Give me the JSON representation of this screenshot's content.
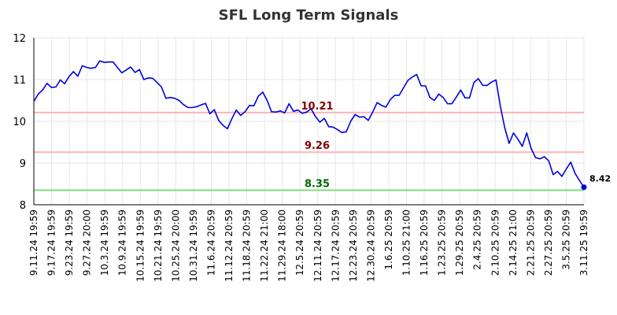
{
  "chart_data": {
    "type": "line",
    "title": "SFL Long Term Signals",
    "ylim": [
      8,
      12
    ],
    "yticks": [
      8,
      9,
      10,
      11,
      12
    ],
    "grid": true,
    "colors": {
      "line": "#0000dd",
      "resistance": "#ffb3b3",
      "support": "#7fdd7f",
      "resistance_label": "#800000",
      "support_label": "#006400",
      "grid": "#e6e6e6"
    },
    "x_tick_labels": [
      "9.11.24 19:59",
      "9.17.24 19:59",
      "9.23.24 19:59",
      "9.27.24 20:00",
      "10.3.24 19:59",
      "10.9.24 19:59",
      "10.15.24 19:59",
      "10.21.24 19:59",
      "10.25.24 20:00",
      "10.31.24 19:59",
      "11.6.24 20:59",
      "11.12.24 20:59",
      "11.18.24 20:59",
      "11.22.24 21:00",
      "11.29.24 18:00",
      "12.5.24 20:59",
      "12.11.24 20:59",
      "12.17.24 20:59",
      "12.23.24 20:59",
      "12.30.24 20:59",
      "1.6.25 20:59",
      "1.10.25 21:00",
      "1.16.25 20:59",
      "1.23.25 20:59",
      "1.29.25 20:59",
      "2.4.25 20:59",
      "2.10.25 20:59",
      "2.14.25 21:00",
      "2.21.25 20:59",
      "2.27.25 20:59",
      "3.5.25 20:59",
      "3.11.25 19:59"
    ],
    "horizontal_lines": [
      {
        "value": 10.21,
        "label": "10.21",
        "kind": "resistance"
      },
      {
        "value": 9.26,
        "label": "9.26",
        "kind": "resistance"
      },
      {
        "value": 8.35,
        "label": "8.35",
        "kind": "support"
      }
    ],
    "last_value_label": "8.42",
    "series": [
      {
        "values": [
          10.48,
          10.65,
          10.75,
          10.91,
          10.81,
          10.82,
          10.99,
          10.9,
          11.07,
          11.19,
          11.08,
          11.33,
          11.29,
          11.27,
          11.29,
          11.45,
          11.41,
          11.42,
          11.42,
          11.29,
          11.16,
          11.23,
          11.3,
          11.17,
          11.24,
          11.0,
          11.04,
          11.03,
          10.93,
          10.82,
          10.55,
          10.57,
          10.55,
          10.5,
          10.4,
          10.33,
          10.33,
          10.35,
          10.39,
          10.43,
          10.18,
          10.28,
          10.02,
          9.9,
          9.82,
          10.06,
          10.27,
          10.14,
          10.23,
          10.38,
          10.37,
          10.6,
          10.7,
          10.5,
          10.23,
          10.22,
          10.25,
          10.2,
          10.42,
          10.24,
          10.27,
          10.19,
          10.22,
          10.3,
          10.11,
          9.98,
          10.07,
          9.87,
          9.86,
          9.8,
          9.73,
          9.75,
          10.0,
          10.16,
          10.1,
          10.11,
          10.02,
          10.22,
          10.45,
          10.38,
          10.34,
          10.52,
          10.62,
          10.62,
          10.8,
          10.98,
          11.06,
          11.12,
          10.85,
          10.85,
          10.57,
          10.5,
          10.65,
          10.57,
          10.42,
          10.42,
          10.58,
          10.75,
          10.56,
          10.56,
          10.93,
          11.02,
          10.86,
          10.86,
          10.94,
          10.99,
          10.36,
          9.85,
          9.47,
          9.72,
          9.57,
          9.4,
          9.72,
          9.35,
          9.13,
          9.1,
          9.15,
          9.05,
          8.72,
          8.8,
          8.68,
          8.86,
          9.02,
          8.75,
          8.58,
          8.42
        ]
      }
    ]
  }
}
